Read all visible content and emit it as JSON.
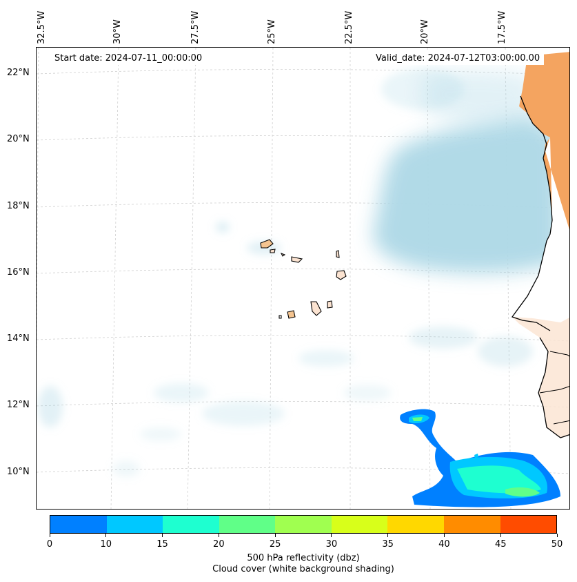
{
  "map": {
    "start_date_label": "Start date: 2024-07-11_00:00:00",
    "valid_date_label": "Valid_date: 2024-07-12T03:00:00.00",
    "lon_labels": [
      "32.5°W",
      "30°W",
      "27.5°W",
      "25°W",
      "22.5°W",
      "20°W",
      "17.5°W"
    ],
    "lat_labels": [
      "22°N",
      "20°N",
      "18°N",
      "16°N",
      "14°N",
      "12°N",
      "10°N"
    ]
  },
  "colorbar": {
    "colors": [
      "#0080ff",
      "#00c8ff",
      "#1effd0",
      "#60ff88",
      "#a0ff50",
      "#d8ff1a",
      "#ffd800",
      "#ff8c00",
      "#ff4c00"
    ],
    "ticks": [
      "0",
      "10",
      "15",
      "20",
      "25",
      "30",
      "35",
      "40",
      "45",
      "50"
    ],
    "caption_line1": "500 hPa reflectivity (dbz)",
    "caption_line2": "Cloud cover (white background shading)"
  },
  "legend_colors": {
    "cloud": "#add8e6",
    "land_hot": "#f4a460",
    "land_light": "#fbe3d1"
  }
}
